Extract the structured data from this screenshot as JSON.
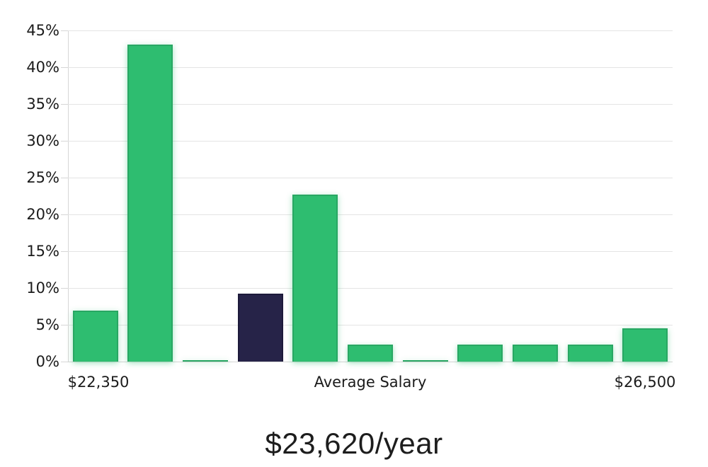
{
  "chart_data": {
    "type": "bar",
    "title": "$23,620/year",
    "xlabel": "",
    "ylabel": "",
    "x_axis_labels": [
      "$22,350",
      "Average Salary",
      "$26,500"
    ],
    "y_ticks": [
      "0%",
      "5%",
      "10%",
      "15%",
      "20%",
      "25%",
      "30%",
      "35%",
      "40%",
      "45%"
    ],
    "ylim": [
      0,
      45
    ],
    "values": [
      6.9,
      43.1,
      0.2,
      9.2,
      22.7,
      2.3,
      0.2,
      2.3,
      2.3,
      2.3,
      4.5
    ],
    "unit": "%",
    "highlight_index": 3,
    "grid": true,
    "legend_visible": false,
    "colors": {
      "bar": "#2ebd70",
      "bar_border": "#28a763",
      "highlight_bar": "#262348",
      "highlight_border": "#1d1a3a",
      "gridline": "#e4e4e4",
      "axis_line": "#d6d6d6",
      "label_text": "#1b1b1b"
    }
  }
}
